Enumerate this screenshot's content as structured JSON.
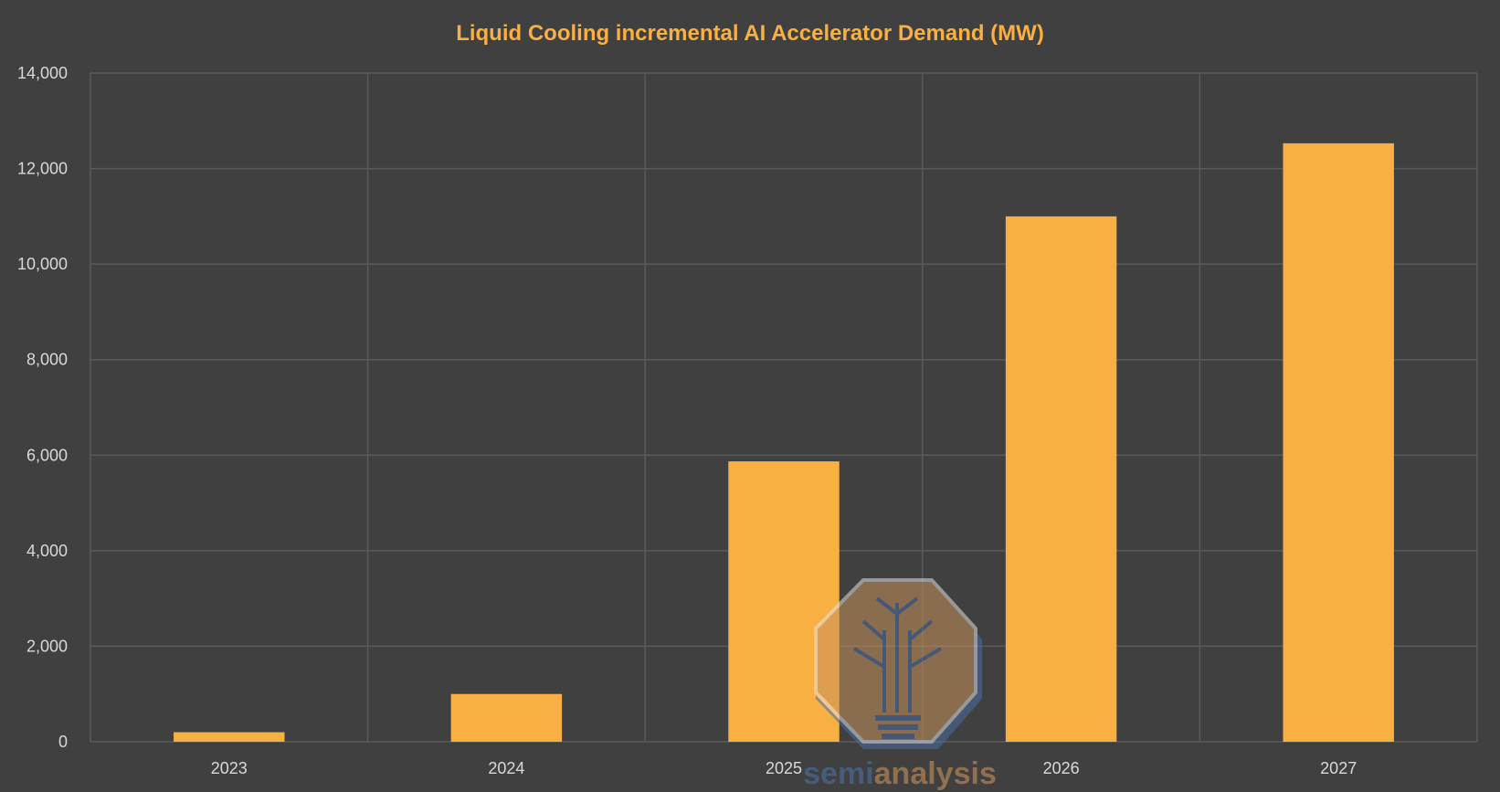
{
  "chart_data": {
    "type": "bar",
    "title": "Liquid Cooling incremental AI Accelerator Demand (MW)",
    "categories": [
      "2023",
      "2024",
      "2025",
      "2026",
      "2027"
    ],
    "values": [
      200,
      1000,
      5870,
      11000,
      12530
    ],
    "ylim": [
      0,
      14000
    ],
    "yticks": [
      "0",
      "2,000",
      "4,000",
      "6,000",
      "8,000",
      "10,000",
      "12,000",
      "14,000"
    ],
    "xlabel": "",
    "ylabel": "",
    "grid": true,
    "legend": "none",
    "bar_color": "#f8b042",
    "background_color": "#404040"
  },
  "watermark": {
    "text_semi": "semi",
    "text_analysis": "analysis",
    "icon": "circuit-tree-bulb-icon"
  }
}
